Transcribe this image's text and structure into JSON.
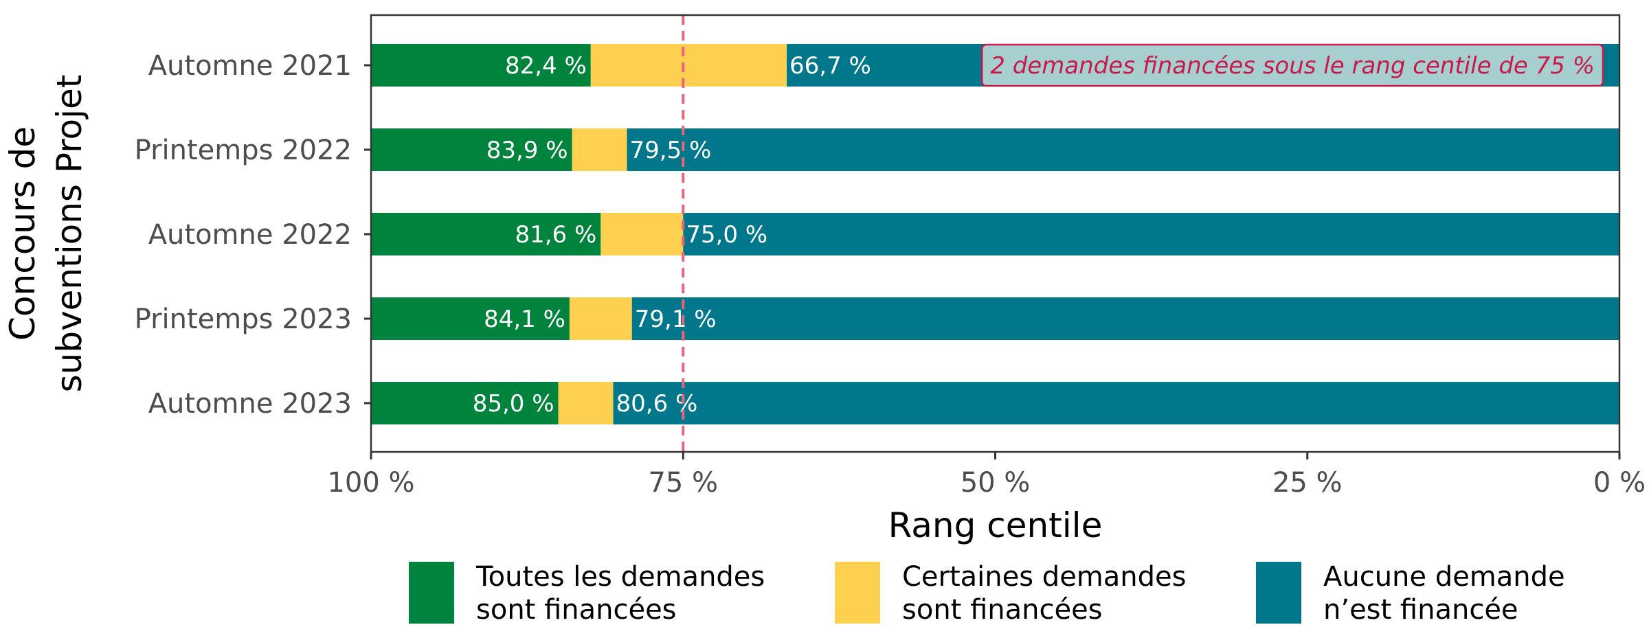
{
  "chart_data": {
    "type": "bar",
    "orientation": "horizontal",
    "stacked": true,
    "categories": [
      "Automne 2021",
      "Printemps 2022",
      "Automne 2022",
      "Printemps 2023",
      "Automne 2023"
    ],
    "series": [
      {
        "name": "Toutes les demandes sont financées",
        "legend_lines": [
          "Toutes les demandes",
          "sont financées"
        ],
        "color": "#00843d",
        "start": [
          100,
          100,
          100,
          100,
          100
        ],
        "end": [
          82.4,
          83.9,
          81.6,
          84.1,
          85.0
        ]
      },
      {
        "name": "Certaines demandes sont financées",
        "legend_lines": [
          "Certaines demandes",
          "sont financées"
        ],
        "color": "#fdd04f",
        "start": [
          82.4,
          83.9,
          81.6,
          84.1,
          85.0
        ],
        "end": [
          66.7,
          79.5,
          75.0,
          79.1,
          80.6
        ]
      },
      {
        "name": "Aucune demande n’est financée",
        "legend_lines": [
          "Aucune demande",
          "n’est financée"
        ],
        "color": "#00778a",
        "start": [
          66.7,
          79.5,
          75.0,
          79.1,
          80.6
        ],
        "end": [
          0,
          0,
          0,
          0,
          0
        ]
      }
    ],
    "bar_labels": [
      {
        "category": "Automne 2021",
        "value": 82.4,
        "text": "82,4 %",
        "anchor": "end"
      },
      {
        "category": "Automne 2021",
        "value": 66.7,
        "text": "66,7 %",
        "anchor": "start"
      },
      {
        "category": "Printemps 2022",
        "value": 83.9,
        "text": "83,9 %",
        "anchor": "end"
      },
      {
        "category": "Printemps 2022",
        "value": 79.5,
        "text": "79,5 %",
        "anchor": "start"
      },
      {
        "category": "Automne 2022",
        "value": 81.6,
        "text": "81,6 %",
        "anchor": "end"
      },
      {
        "category": "Automne 2022",
        "value": 75.0,
        "text": "75,0 %",
        "anchor": "start"
      },
      {
        "category": "Printemps 2023",
        "value": 84.1,
        "text": "84,1 %",
        "anchor": "end"
      },
      {
        "category": "Printemps 2023",
        "value": 79.1,
        "text": "79,1 %",
        "anchor": "start"
      },
      {
        "category": "Automne 2023",
        "value": 85.0,
        "text": "85,0 %",
        "anchor": "end"
      },
      {
        "category": "Automne 2023",
        "value": 80.6,
        "text": "80,6 %",
        "anchor": "start"
      }
    ],
    "xlabel": "Rang centile",
    "ylabel_lines": [
      "Concours de",
      "subventions Projet"
    ],
    "xlim": [
      100,
      0
    ],
    "x_reversed": true,
    "xticks": [
      100,
      75,
      50,
      25,
      0
    ],
    "xtick_labels": [
      "100 %",
      "75 %",
      "50 %",
      "25 %",
      "0 %"
    ],
    "reference_line": {
      "value": 75,
      "style": "dashed",
      "color": "#e8657e"
    },
    "annotation": {
      "text": "2 demandes financées sous le rang centile de 75 %",
      "category": "Automne 2021",
      "text_color": "#c8194b",
      "fill": "#a8cfd0",
      "border": "#c8194b"
    },
    "legend_position": "bottom",
    "grid": false
  }
}
